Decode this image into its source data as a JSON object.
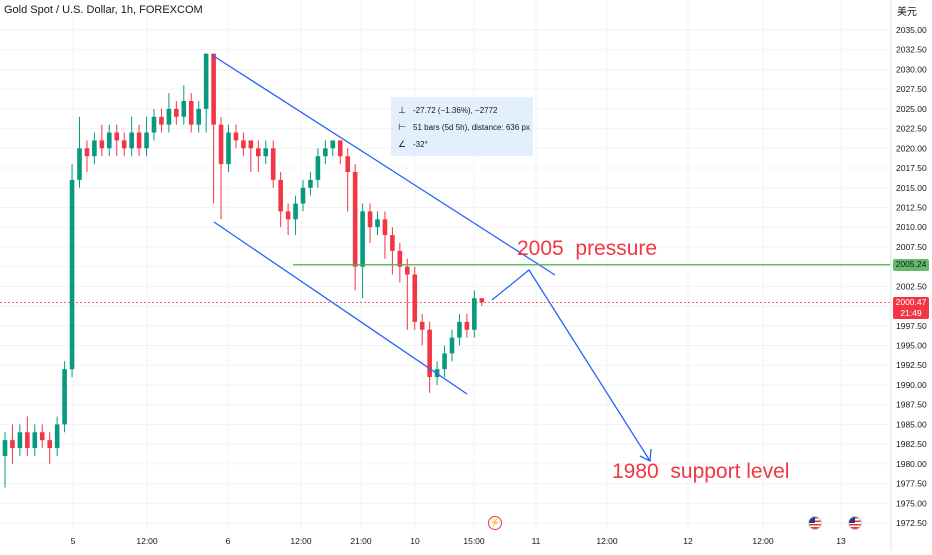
{
  "chart_data": {
    "type": "candlestick",
    "title": "Gold Spot / U.S. Dollar, 1h, FOREXCOM",
    "currency_label": "美元",
    "ylim": [
      1972.5,
      2037.5
    ],
    "yticks": [
      "2035.00",
      "2032.50",
      "2030.00",
      "2027.50",
      "2025.00",
      "2022.50",
      "2020.00",
      "2017.50",
      "2015.00",
      "2012.50",
      "2010.00",
      "2007.50",
      "2005.00",
      "2002.50",
      "2000.00",
      "1997.50",
      "1995.00",
      "1992.50",
      "1990.00",
      "1987.50",
      "1985.00",
      "1982.50",
      "1980.00",
      "1977.50",
      "1975.00",
      "1972.50"
    ],
    "xticks": [
      "5",
      "12:00",
      "6",
      "12:00",
      "21:00",
      "10",
      "15:00",
      "11",
      "12:00",
      "12",
      "12:00",
      "13"
    ],
    "candles": [
      [
        1981,
        1983,
        1977,
        1984
      ],
      [
        1983,
        1982,
        1980,
        1985
      ],
      [
        1982,
        1984,
        1981,
        1985
      ],
      [
        1984,
        1982,
        1981,
        1986
      ],
      [
        1982,
        1984,
        1981,
        1985
      ],
      [
        1984,
        1983,
        1982,
        1985
      ],
      [
        1983,
        1982,
        1980,
        1984
      ],
      [
        1982,
        1985,
        1981,
        1986
      ],
      [
        1985,
        1992,
        1984,
        1993
      ],
      [
        1992,
        2016,
        1991,
        2018
      ],
      [
        2016,
        2020,
        2015,
        2024
      ],
      [
        2020,
        2019,
        2017,
        2021
      ],
      [
        2019,
        2021,
        2018,
        2022
      ],
      [
        2021,
        2020,
        2019,
        2023
      ],
      [
        2020,
        2022,
        2019,
        2023
      ],
      [
        2022,
        2021,
        2019,
        2023
      ],
      [
        2021,
        2020,
        2019,
        2022
      ],
      [
        2020,
        2022,
        2019,
        2024
      ],
      [
        2022,
        2020,
        2019,
        2023
      ],
      [
        2020,
        2022,
        2019,
        2024
      ],
      [
        2022,
        2024,
        2021,
        2025
      ],
      [
        2024,
        2023,
        2022,
        2025
      ],
      [
        2023,
        2025,
        2022,
        2027
      ],
      [
        2025,
        2024,
        2023,
        2026
      ],
      [
        2024,
        2026,
        2023,
        2028
      ],
      [
        2026,
        2023,
        2022,
        2027
      ],
      [
        2023,
        2025,
        2022,
        2026
      ],
      [
        2025,
        2032,
        2022,
        2032
      ],
      [
        2032,
        2023,
        2013,
        2032
      ],
      [
        2023,
        2018,
        2011,
        2024
      ],
      [
        2018,
        2022,
        2017,
        2023
      ],
      [
        2022,
        2021,
        2020,
        2023
      ],
      [
        2021,
        2020,
        2019,
        2022
      ],
      [
        2021,
        2020,
        2017,
        2021
      ],
      [
        2020,
        2019,
        2017,
        2021
      ],
      [
        2019,
        2020,
        2018,
        2021
      ],
      [
        2020,
        2016,
        2015,
        2021
      ],
      [
        2016,
        2012,
        2010,
        2017
      ],
      [
        2012,
        2011,
        2009,
        2013
      ],
      [
        2011,
        2013,
        2009,
        2014
      ],
      [
        2013,
        2015,
        2012,
        2016
      ],
      [
        2015,
        2016,
        2014,
        2017
      ],
      [
        2016,
        2019,
        2015,
        2020
      ],
      [
        2019,
        2020,
        2018,
        2021
      ],
      [
        2020,
        2021,
        2019,
        2021
      ],
      [
        2021,
        2019,
        2018,
        2021
      ],
      [
        2019,
        2017,
        2012,
        2020
      ],
      [
        2017,
        2005,
        2002,
        2018
      ],
      [
        2005,
        2012,
        2001,
        2013
      ],
      [
        2012,
        2010,
        2008,
        2013
      ],
      [
        2010,
        2011,
        2009,
        2012
      ],
      [
        2011,
        2009,
        2006,
        2012
      ],
      [
        2009,
        2007,
        2004,
        2010
      ],
      [
        2007,
        2005,
        2003,
        2008
      ],
      [
        2005,
        2004,
        1997,
        2006
      ],
      [
        2004,
        1998,
        1997,
        2005
      ],
      [
        1998,
        1997,
        1995,
        1999
      ],
      [
        1997,
        1991,
        1989,
        1998
      ],
      [
        1991,
        1992,
        1990,
        1993
      ],
      [
        1992,
        1994,
        1991,
        1995
      ],
      [
        1994,
        1996,
        1993,
        1997
      ],
      [
        1996,
        1998,
        1995,
        1999
      ],
      [
        1998,
        1997,
        1996,
        1999
      ],
      [
        1997,
        2001,
        1996,
        2002
      ],
      [
        2001,
        2000.47,
        2000,
        2001
      ]
    ],
    "horizontal_line_value": 2005.24,
    "last_price": "2000.47",
    "last_price_countdown": "21:49",
    "horizontal_line_label": "2005.24",
    "annotations": {
      "pressure": "2005  pressure",
      "support": "1980  support level"
    },
    "measure_tool": {
      "price_change": "-27.72 (−1.36%), −2772",
      "bars": "51 bars (5d 5h), distance: 636 px",
      "angle": "-32°"
    },
    "colors": {
      "up": "#089981",
      "down": "#f23645",
      "channel": "#2962ff",
      "level_line": "#4caf50",
      "annotation": "#f23645"
    }
  }
}
